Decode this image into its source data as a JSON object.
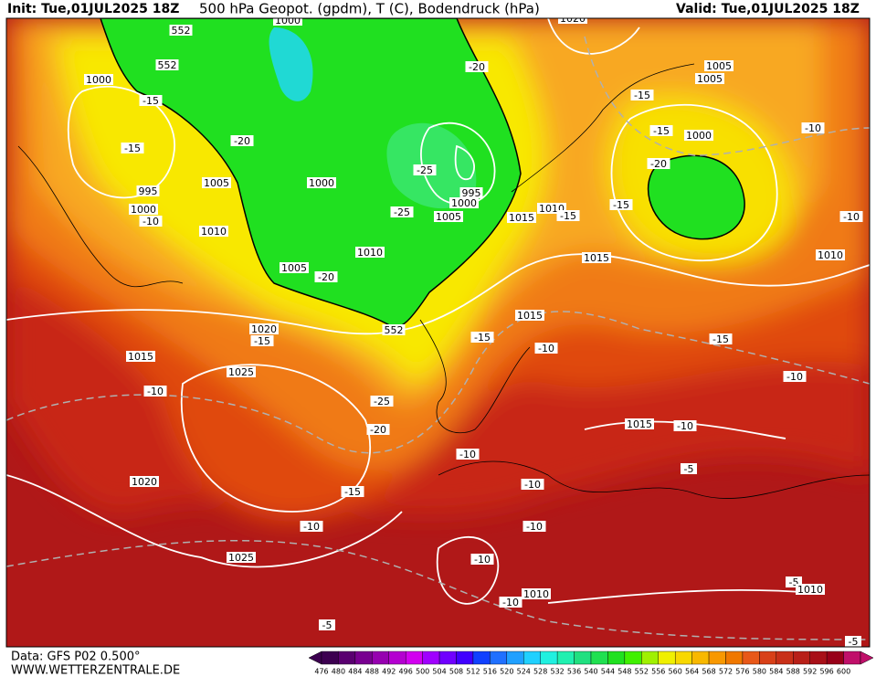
{
  "header": {
    "init": "Init: Tue,01JUL2025 18Z",
    "title": "500 hPa Geopot. (gpdm), T (C), Bodendruck (hPa)",
    "valid": "Valid: Tue,01JUL2025 18Z"
  },
  "footer": {
    "data": "Data: GFS P02 0.500°",
    "site": "WWW.WETTERZENTRALE.DE"
  },
  "scale": {
    "labels": [
      "476",
      "480",
      "484",
      "488",
      "492",
      "496",
      "500",
      "504",
      "508",
      "512",
      "516",
      "520",
      "524",
      "528",
      "532",
      "536",
      "540",
      "544",
      "548",
      "552",
      "556",
      "560",
      "564",
      "568",
      "572",
      "576",
      "580",
      "584",
      "588",
      "592",
      "596",
      "600"
    ],
    "colors": [
      "#3c0050",
      "#5a0070",
      "#780090",
      "#9600b0",
      "#b400d0",
      "#d200f0",
      "#a000ff",
      "#7000ff",
      "#4000ff",
      "#1040ff",
      "#2070ff",
      "#20a0ff",
      "#20d0ff",
      "#20f0e0",
      "#20f0b0",
      "#20e080",
      "#20e050",
      "#20e020",
      "#40f000",
      "#a0f000",
      "#f0f000",
      "#f8d800",
      "#f8b800",
      "#f89800",
      "#f07800",
      "#e85818",
      "#d84018",
      "#c83018",
      "#b82018",
      "#a81018",
      "#980018",
      "#c0106a"
    ]
  },
  "map": {
    "labels": [
      "1000",
      "552",
      "552",
      "1000",
      "-15",
      "-15",
      "-20",
      "995",
      "1005",
      "1000",
      "-10",
      "1010",
      "1000",
      "-25",
      "995",
      "1000",
      "-25",
      "1005",
      "1015",
      "1010",
      "-15",
      "1010",
      "1005",
      "-20",
      "552",
      "-20",
      "1020",
      "1005",
      "1005",
      "-15",
      "-15",
      "1000",
      "-20",
      "-15",
      "-10",
      "-10",
      "1015",
      "1010",
      "1015",
      "-15",
      "-10",
      "-15",
      "1020",
      "-15",
      "1015",
      "1025",
      "-10",
      "-10",
      "-25",
      "-20",
      "1015",
      "-10",
      "-10",
      "-5",
      "-10",
      "1020",
      "-15",
      "-10",
      "-10",
      "1025",
      "-10",
      "-5",
      "1010",
      "1010",
      "-10",
      "-5",
      "-5"
    ]
  }
}
